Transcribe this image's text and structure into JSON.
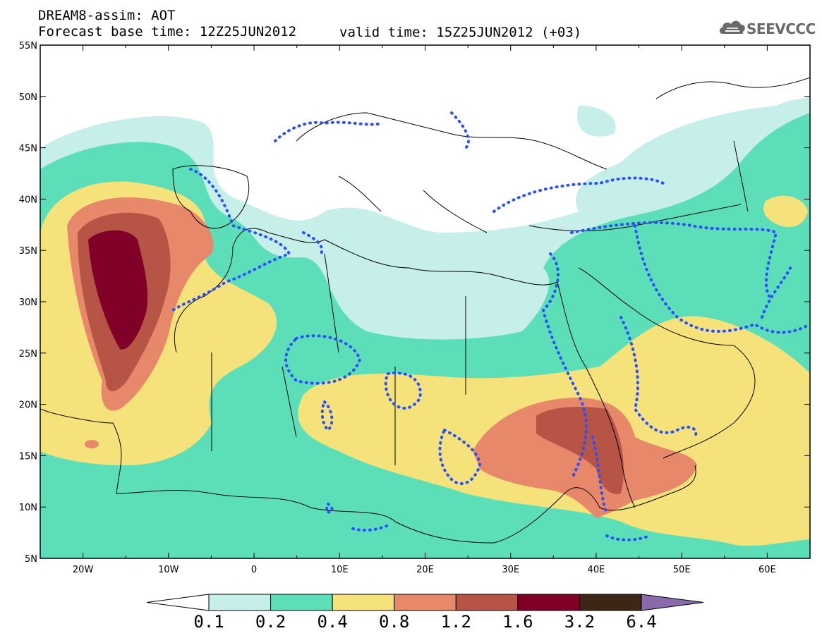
{
  "header": {
    "line1": "DREAM8-assim: AOT",
    "line2_base": "Forecast base time: 12Z25JUN2012",
    "line2_valid": "valid time: 15Z25JUN2012 (+03)"
  },
  "logo": {
    "text": "SEEVCCC",
    "icon": "cloud-icon"
  },
  "map": {
    "lon_range": [
      -25,
      65
    ],
    "lat_range": [
      5,
      55
    ],
    "lat_labels": [
      "55N",
      "50N",
      "45N",
      "40N",
      "35N",
      "30N",
      "25N",
      "20N",
      "15N",
      "10N",
      "5N"
    ],
    "lon_labels": [
      "20W",
      "10W",
      "0",
      "10E",
      "20E",
      "30E",
      "40E",
      "50E",
      "60E"
    ]
  },
  "colorbar": {
    "labels": [
      "0.1",
      "0.2",
      "0.4",
      "0.8",
      "1.2",
      "1.6",
      "3.2",
      "6.4"
    ],
    "colors": [
      "#ffffff",
      "#c6efe9",
      "#5cdfb8",
      "#f5e27a",
      "#e8886a",
      "#b65545",
      "#800028",
      "#3d2616",
      "#8a6aaa"
    ]
  },
  "legend_colors": {
    "level_0_1": "#c6efe9",
    "level_0_2": "#5cdfb8",
    "level_0_4": "#f5e27a",
    "level_0_8": "#e8886a",
    "level_1_2": "#b65545",
    "level_1_6": "#800028",
    "dotted_contour": "#2b4fff"
  }
}
